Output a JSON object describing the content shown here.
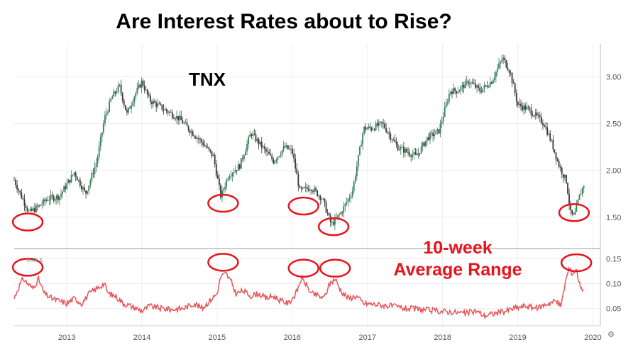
{
  "title": "Are Interest Rates about to Rise?",
  "chart_data": [
    {
      "type": "candlestick",
      "series_label": "TNX",
      "x_ticks": [
        "2013",
        "2014",
        "2015",
        "2016",
        "2017",
        "2018",
        "2019",
        "2020"
      ],
      "y_ticks": [
        "1.50",
        "2.00",
        "2.50",
        "3.00"
      ],
      "ylim": [
        1.25,
        3.35
      ],
      "xlim": [
        2012.3,
        2020.1
      ],
      "key_points": [
        {
          "x": 2012.3,
          "y": 1.9
        },
        {
          "x": 2012.38,
          "y": 1.75
        },
        {
          "x": 2012.5,
          "y": 1.55
        },
        {
          "x": 2012.6,
          "y": 1.6
        },
        {
          "x": 2012.75,
          "y": 1.7
        },
        {
          "x": 2012.9,
          "y": 1.72
        },
        {
          "x": 2013.0,
          "y": 1.85
        },
        {
          "x": 2013.1,
          "y": 1.98
        },
        {
          "x": 2013.25,
          "y": 1.75
        },
        {
          "x": 2013.4,
          "y": 2.1
        },
        {
          "x": 2013.5,
          "y": 2.55
        },
        {
          "x": 2013.6,
          "y": 2.78
        },
        {
          "x": 2013.7,
          "y": 2.9
        },
        {
          "x": 2013.8,
          "y": 2.6
        },
        {
          "x": 2013.9,
          "y": 2.8
        },
        {
          "x": 2014.0,
          "y": 2.95
        },
        {
          "x": 2014.1,
          "y": 2.75
        },
        {
          "x": 2014.3,
          "y": 2.65
        },
        {
          "x": 2014.5,
          "y": 2.55
        },
        {
          "x": 2014.65,
          "y": 2.42
        },
        {
          "x": 2014.8,
          "y": 2.3
        },
        {
          "x": 2014.95,
          "y": 2.15
        },
        {
          "x": 2015.05,
          "y": 1.72
        },
        {
          "x": 2015.15,
          "y": 1.95
        },
        {
          "x": 2015.3,
          "y": 2.05
        },
        {
          "x": 2015.45,
          "y": 2.4
        },
        {
          "x": 2015.6,
          "y": 2.25
        },
        {
          "x": 2015.75,
          "y": 2.1
        },
        {
          "x": 2015.9,
          "y": 2.25
        },
        {
          "x": 2016.0,
          "y": 2.2
        },
        {
          "x": 2016.1,
          "y": 1.78
        },
        {
          "x": 2016.25,
          "y": 1.82
        },
        {
          "x": 2016.4,
          "y": 1.7
        },
        {
          "x": 2016.52,
          "y": 1.42
        },
        {
          "x": 2016.65,
          "y": 1.55
        },
        {
          "x": 2016.8,
          "y": 1.78
        },
        {
          "x": 2016.95,
          "y": 2.45
        },
        {
          "x": 2017.05,
          "y": 2.45
        },
        {
          "x": 2017.2,
          "y": 2.5
        },
        {
          "x": 2017.4,
          "y": 2.25
        },
        {
          "x": 2017.65,
          "y": 2.15
        },
        {
          "x": 2017.8,
          "y": 2.35
        },
        {
          "x": 2017.95,
          "y": 2.42
        },
        {
          "x": 2018.1,
          "y": 2.85
        },
        {
          "x": 2018.2,
          "y": 2.85
        },
        {
          "x": 2018.35,
          "y": 2.95
        },
        {
          "x": 2018.5,
          "y": 2.85
        },
        {
          "x": 2018.65,
          "y": 2.95
        },
        {
          "x": 2018.8,
          "y": 3.2
        },
        {
          "x": 2018.9,
          "y": 3.05
        },
        {
          "x": 2019.0,
          "y": 2.7
        },
        {
          "x": 2019.15,
          "y": 2.65
        },
        {
          "x": 2019.35,
          "y": 2.5
        },
        {
          "x": 2019.45,
          "y": 2.3
        },
        {
          "x": 2019.55,
          "y": 2.05
        },
        {
          "x": 2019.65,
          "y": 1.88
        },
        {
          "x": 2019.7,
          "y": 1.55
        },
        {
          "x": 2019.75,
          "y": 1.5
        },
        {
          "x": 2019.82,
          "y": 1.72
        },
        {
          "x": 2019.88,
          "y": 1.85
        }
      ]
    },
    {
      "type": "line",
      "indicator_label": "ATR 5",
      "y_ticks": [
        "0.05",
        "0.10",
        "0.15"
      ],
      "ylim": [
        0.015,
        0.155
      ],
      "color": "#e8545a",
      "points": [
        {
          "x": 2012.3,
          "y": 0.07
        },
        {
          "x": 2012.35,
          "y": 0.09
        },
        {
          "x": 2012.42,
          "y": 0.11
        },
        {
          "x": 2012.48,
          "y": 0.1
        },
        {
          "x": 2012.55,
          "y": 0.09
        },
        {
          "x": 2012.62,
          "y": 0.11
        },
        {
          "x": 2012.7,
          "y": 0.08
        },
        {
          "x": 2012.8,
          "y": 0.07
        },
        {
          "x": 2012.9,
          "y": 0.065
        },
        {
          "x": 2013.0,
          "y": 0.06
        },
        {
          "x": 2013.1,
          "y": 0.07
        },
        {
          "x": 2013.2,
          "y": 0.06
        },
        {
          "x": 2013.3,
          "y": 0.08
        },
        {
          "x": 2013.4,
          "y": 0.09
        },
        {
          "x": 2013.5,
          "y": 0.1
        },
        {
          "x": 2013.55,
          "y": 0.08
        },
        {
          "x": 2013.65,
          "y": 0.075
        },
        {
          "x": 2013.75,
          "y": 0.06
        },
        {
          "x": 2013.85,
          "y": 0.055
        },
        {
          "x": 2014.0,
          "y": 0.045
        },
        {
          "x": 2014.1,
          "y": 0.055
        },
        {
          "x": 2014.25,
          "y": 0.05
        },
        {
          "x": 2014.4,
          "y": 0.048
        },
        {
          "x": 2014.55,
          "y": 0.05
        },
        {
          "x": 2014.7,
          "y": 0.06
        },
        {
          "x": 2014.8,
          "y": 0.05
        },
        {
          "x": 2014.9,
          "y": 0.065
        },
        {
          "x": 2015.0,
          "y": 0.08
        },
        {
          "x": 2015.05,
          "y": 0.115
        },
        {
          "x": 2015.12,
          "y": 0.12
        },
        {
          "x": 2015.2,
          "y": 0.1
        },
        {
          "x": 2015.25,
          "y": 0.08
        },
        {
          "x": 2015.35,
          "y": 0.085
        },
        {
          "x": 2015.45,
          "y": 0.075
        },
        {
          "x": 2015.55,
          "y": 0.08
        },
        {
          "x": 2015.65,
          "y": 0.07
        },
        {
          "x": 2015.75,
          "y": 0.075
        },
        {
          "x": 2015.85,
          "y": 0.065
        },
        {
          "x": 2015.95,
          "y": 0.06
        },
        {
          "x": 2016.05,
          "y": 0.08
        },
        {
          "x": 2016.12,
          "y": 0.11
        },
        {
          "x": 2016.18,
          "y": 0.1
        },
        {
          "x": 2016.25,
          "y": 0.08
        },
        {
          "x": 2016.35,
          "y": 0.075
        },
        {
          "x": 2016.42,
          "y": 0.07
        },
        {
          "x": 2016.5,
          "y": 0.1
        },
        {
          "x": 2016.57,
          "y": 0.11
        },
        {
          "x": 2016.65,
          "y": 0.085
        },
        {
          "x": 2016.75,
          "y": 0.07
        },
        {
          "x": 2016.85,
          "y": 0.075
        },
        {
          "x": 2016.95,
          "y": 0.06
        },
        {
          "x": 2017.1,
          "y": 0.058
        },
        {
          "x": 2017.3,
          "y": 0.055
        },
        {
          "x": 2017.5,
          "y": 0.05
        },
        {
          "x": 2017.7,
          "y": 0.048
        },
        {
          "x": 2017.9,
          "y": 0.045
        },
        {
          "x": 2018.1,
          "y": 0.043
        },
        {
          "x": 2018.3,
          "y": 0.04
        },
        {
          "x": 2018.45,
          "y": 0.045
        },
        {
          "x": 2018.55,
          "y": 0.035
        },
        {
          "x": 2018.7,
          "y": 0.04
        },
        {
          "x": 2018.85,
          "y": 0.045
        },
        {
          "x": 2018.95,
          "y": 0.05
        },
        {
          "x": 2019.1,
          "y": 0.055
        },
        {
          "x": 2019.25,
          "y": 0.05
        },
        {
          "x": 2019.4,
          "y": 0.06
        },
        {
          "x": 2019.5,
          "y": 0.065
        },
        {
          "x": 2019.58,
          "y": 0.055
        },
        {
          "x": 2019.63,
          "y": 0.1
        },
        {
          "x": 2019.68,
          "y": 0.13
        },
        {
          "x": 2019.73,
          "y": 0.12
        },
        {
          "x": 2019.78,
          "y": 0.13
        },
        {
          "x": 2019.82,
          "y": 0.1
        },
        {
          "x": 2019.88,
          "y": 0.085
        }
      ]
    }
  ],
  "annotations": {
    "line1": "10-week",
    "line2": "Average Range",
    "color": "#e8131b"
  },
  "settings_icon": "gear-icon",
  "colors": {
    "up": "#3b7d5a",
    "down": "#3a3a3a",
    "circle": "#e8131b",
    "grid": "#eeeeee"
  }
}
